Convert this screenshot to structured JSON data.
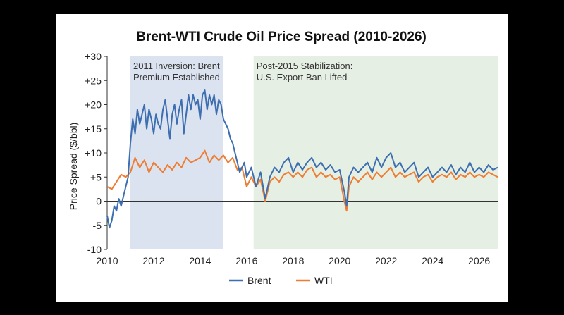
{
  "chart_data": {
    "type": "line",
    "title": "Brent-WTI Crude Oil Price Spread (2010-2026)",
    "ylabel": "Price Spread ($/bbl)",
    "xlabel": "",
    "xlim": [
      2010,
      2026.8
    ],
    "ylim": [
      -10,
      30
    ],
    "x_ticks": [
      2010,
      2012,
      2014,
      2016,
      2018,
      2020,
      2022,
      2024,
      2026
    ],
    "x_tick_labels": [
      "2010",
      "2012",
      "2014",
      "2016",
      "2018",
      "2020",
      "2022",
      "2024",
      "2026"
    ],
    "y_ticks": [
      -10,
      -5,
      0,
      5,
      10,
      15,
      20,
      25,
      30
    ],
    "y_tick_labels": [
      "-10",
      "-5",
      "0",
      "+5",
      "+10",
      "+15",
      "+20",
      "+25",
      "+30"
    ],
    "grid": false,
    "legend": "bottom-center",
    "shaded_regions": [
      {
        "x0": 2011.0,
        "x1": 2015.0,
        "color": "#dbe3f1",
        "label_lines": [
          "2011 Inversion: Brent",
          "Premium Established"
        ]
      },
      {
        "x0": 2016.3,
        "x1": 2026.8,
        "color": "#e6efe3",
        "label_lines": [
          "Post-2015 Stabilization:",
          "U.S. Export Ban Lifted"
        ]
      }
    ],
    "series": [
      {
        "name": "Brent",
        "color": "#3d6fb0",
        "x": [
          2010.0,
          2010.1,
          2010.2,
          2010.3,
          2010.4,
          2010.5,
          2010.6,
          2010.7,
          2010.8,
          2010.9,
          2011.0,
          2011.1,
          2011.2,
          2011.3,
          2011.4,
          2011.5,
          2011.6,
          2011.7,
          2011.8,
          2011.9,
          2012.0,
          2012.1,
          2012.2,
          2012.3,
          2012.4,
          2012.5,
          2012.6,
          2012.7,
          2012.8,
          2012.9,
          2013.0,
          2013.1,
          2013.2,
          2013.3,
          2013.4,
          2013.5,
          2013.6,
          2013.7,
          2013.8,
          2013.9,
          2014.0,
          2014.1,
          2014.2,
          2014.3,
          2014.4,
          2014.5,
          2014.6,
          2014.7,
          2014.8,
          2014.9,
          2015.0,
          2015.1,
          2015.2,
          2015.3,
          2015.4,
          2015.5,
          2015.6,
          2015.7,
          2015.8,
          2015.9,
          2016.0,
          2016.2,
          2016.4,
          2016.6,
          2016.8,
          2017.0,
          2017.2,
          2017.4,
          2017.6,
          2017.8,
          2018.0,
          2018.2,
          2018.4,
          2018.6,
          2018.8,
          2019.0,
          2019.2,
          2019.4,
          2019.6,
          2019.8,
          2020.0,
          2020.2,
          2020.3,
          2020.4,
          2020.6,
          2020.8,
          2021.0,
          2021.2,
          2021.4,
          2021.6,
          2021.8,
          2022.0,
          2022.2,
          2022.4,
          2022.6,
          2022.8,
          2023.0,
          2023.2,
          2023.4,
          2023.6,
          2023.8,
          2024.0,
          2024.2,
          2024.4,
          2024.6,
          2024.8,
          2025.0,
          2025.2,
          2025.4,
          2025.6,
          2025.8,
          2026.0,
          2026.2,
          2026.4,
          2026.6,
          2026.8
        ],
        "values": [
          -3,
          -5.5,
          -4,
          -1,
          -2,
          0.5,
          -1,
          1,
          3,
          5,
          12,
          17,
          14,
          19,
          16,
          18,
          20,
          15,
          19,
          17,
          14,
          18,
          16,
          15,
          19,
          21,
          17,
          13,
          18,
          20,
          16,
          19,
          21,
          14,
          18,
          22,
          19,
          22,
          20,
          21,
          17,
          22,
          23,
          19,
          22,
          20,
          22,
          18,
          21,
          20,
          17,
          16,
          15,
          13,
          12,
          10,
          8,
          6,
          7,
          8,
          5,
          7,
          3,
          6,
          0.5,
          5,
          7,
          6,
          8,
          9,
          6,
          8,
          6.5,
          8,
          9,
          7,
          8,
          6.5,
          7.5,
          6,
          6.5,
          2,
          -1,
          5,
          7,
          6,
          7,
          8,
          6,
          9,
          7,
          9,
          10,
          7,
          8,
          6,
          7,
          8,
          5,
          6,
          7,
          5,
          6,
          7,
          6,
          7.5,
          5.5,
          7,
          6,
          8,
          6,
          7,
          6,
          7.5,
          6.5,
          7
        ]
      },
      {
        "name": "WTI",
        "color": "#ee7d31",
        "x": [
          2010.0,
          2010.2,
          2010.4,
          2010.6,
          2010.8,
          2011.0,
          2011.2,
          2011.4,
          2011.6,
          2011.8,
          2012.0,
          2012.2,
          2012.4,
          2012.6,
          2012.8,
          2013.0,
          2013.2,
          2013.4,
          2013.6,
          2013.8,
          2014.0,
          2014.2,
          2014.4,
          2014.6,
          2014.8,
          2015.0,
          2015.2,
          2015.4,
          2015.6,
          2015.8,
          2016.0,
          2016.2,
          2016.4,
          2016.6,
          2016.8,
          2017.0,
          2017.2,
          2017.4,
          2017.6,
          2017.8,
          2018.0,
          2018.2,
          2018.4,
          2018.6,
          2018.8,
          2019.0,
          2019.2,
          2019.4,
          2019.6,
          2019.8,
          2020.0,
          2020.2,
          2020.3,
          2020.4,
          2020.6,
          2020.8,
          2021.0,
          2021.2,
          2021.4,
          2021.6,
          2021.8,
          2022.0,
          2022.2,
          2022.4,
          2022.6,
          2022.8,
          2023.0,
          2023.2,
          2023.4,
          2023.6,
          2023.8,
          2024.0,
          2024.2,
          2024.4,
          2024.6,
          2024.8,
          2025.0,
          2025.2,
          2025.4,
          2025.6,
          2025.8,
          2026.0,
          2026.2,
          2026.4,
          2026.6,
          2026.8
        ],
        "values": [
          3,
          2.5,
          4,
          5.5,
          5,
          6,
          9,
          7,
          8.5,
          6,
          8,
          7,
          6,
          7.5,
          6.5,
          8,
          7,
          9,
          8,
          8.5,
          9,
          10.5,
          8,
          9.5,
          8.5,
          9.5,
          8,
          9,
          6.5,
          7,
          3,
          5,
          3,
          4.5,
          0,
          4,
          5,
          4,
          5.5,
          6,
          5,
          6,
          5,
          6.5,
          7,
          5,
          6,
          5,
          5.5,
          4.5,
          5,
          0,
          -2,
          3,
          5,
          4,
          5,
          6,
          4.5,
          6,
          5,
          6,
          7,
          5,
          6,
          5,
          5.5,
          6,
          4,
          5,
          5.5,
          4,
          5,
          5.5,
          5,
          6,
          4.5,
          5.5,
          5,
          6,
          5,
          5.5,
          5,
          6,
          5.5,
          5
        ]
      }
    ]
  }
}
